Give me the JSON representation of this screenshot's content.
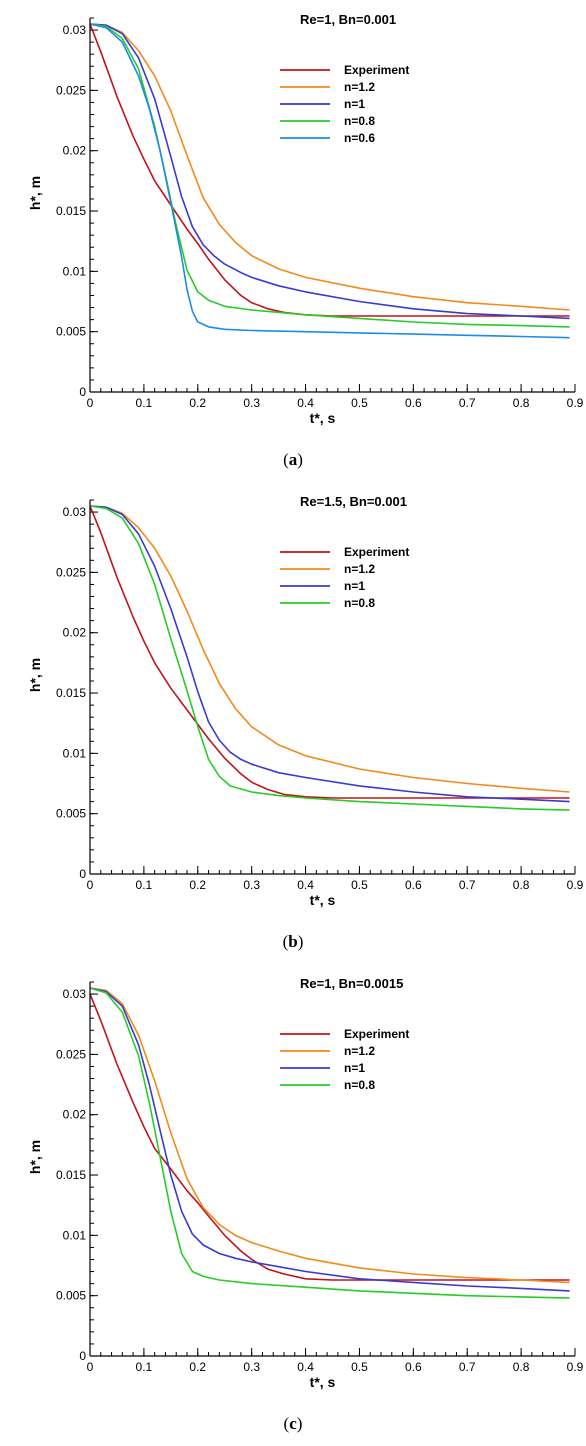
{
  "chart_data": [
    {
      "type": "line",
      "title": "Re=1, Bn=0.001",
      "caption": "a",
      "xlabel": "t*, s",
      "ylabel": "h*, m",
      "xlim": [
        0,
        0.9
      ],
      "ylim": [
        0,
        0.031
      ],
      "x_ticks": [
        "0",
        "0.1",
        "0.2",
        "0.3",
        "0.4",
        "0.5",
        "0.6",
        "0.7",
        "0.8",
        "0.9"
      ],
      "y_ticks": [
        "0",
        "0.005",
        "0.01",
        "0.015",
        "0.02",
        "0.025",
        "0.03"
      ],
      "grid": false,
      "legend_position": "top-right",
      "series": [
        {
          "name": "Experiment",
          "color": "#c0141c",
          "x": [
            0,
            0.02,
            0.05,
            0.08,
            0.1,
            0.12,
            0.15,
            0.18,
            0.2,
            0.22,
            0.25,
            0.28,
            0.3,
            0.33,
            0.36,
            0.4,
            0.45,
            0.5,
            0.6,
            0.7,
            0.8,
            0.89
          ],
          "y": [
            0.0305,
            0.0282,
            0.0245,
            0.0212,
            0.0193,
            0.0175,
            0.0155,
            0.0135,
            0.0123,
            0.011,
            0.0093,
            0.008,
            0.0074,
            0.0069,
            0.0066,
            0.0064,
            0.0063,
            0.0063,
            0.0063,
            0.0063,
            0.0063,
            0.0063
          ]
        },
        {
          "name": "n=1.2",
          "color": "#f28a1c",
          "x": [
            0,
            0.03,
            0.06,
            0.09,
            0.12,
            0.15,
            0.18,
            0.21,
            0.24,
            0.27,
            0.3,
            0.35,
            0.4,
            0.5,
            0.6,
            0.7,
            0.8,
            0.89
          ],
          "y": [
            0.0305,
            0.0304,
            0.0298,
            0.0283,
            0.0262,
            0.0233,
            0.0196,
            0.0161,
            0.0139,
            0.0124,
            0.0113,
            0.0102,
            0.0095,
            0.0086,
            0.0079,
            0.0074,
            0.0071,
            0.0068
          ]
        },
        {
          "name": "n=1",
          "color": "#3a3ad0",
          "x": [
            0,
            0.03,
            0.06,
            0.09,
            0.12,
            0.15,
            0.17,
            0.19,
            0.21,
            0.23,
            0.25,
            0.28,
            0.3,
            0.35,
            0.4,
            0.5,
            0.6,
            0.7,
            0.8,
            0.89
          ],
          "y": [
            0.0305,
            0.0304,
            0.0297,
            0.0277,
            0.0243,
            0.0195,
            0.0162,
            0.0137,
            0.0122,
            0.0113,
            0.0106,
            0.0099,
            0.0095,
            0.0088,
            0.0083,
            0.0075,
            0.0069,
            0.0065,
            0.0063,
            0.0061
          ]
        },
        {
          "name": "n=0.8",
          "color": "#28cc28",
          "x": [
            0,
            0.03,
            0.06,
            0.09,
            0.12,
            0.14,
            0.16,
            0.18,
            0.2,
            0.22,
            0.25,
            0.3,
            0.4,
            0.5,
            0.6,
            0.7,
            0.8,
            0.89
          ],
          "y": [
            0.0305,
            0.0303,
            0.0293,
            0.0268,
            0.022,
            0.018,
            0.0138,
            0.0101,
            0.0083,
            0.0076,
            0.0071,
            0.0068,
            0.0064,
            0.0061,
            0.0058,
            0.0056,
            0.0055,
            0.0054
          ]
        },
        {
          "name": "n=0.6",
          "color": "#1c8ce6",
          "x": [
            0,
            0.03,
            0.06,
            0.09,
            0.11,
            0.13,
            0.15,
            0.17,
            0.18,
            0.19,
            0.2,
            0.22,
            0.25,
            0.3,
            0.4,
            0.5,
            0.6,
            0.7,
            0.8,
            0.89
          ],
          "y": [
            0.0305,
            0.0302,
            0.029,
            0.0262,
            0.0235,
            0.02,
            0.0157,
            0.0112,
            0.0085,
            0.0067,
            0.0058,
            0.0054,
            0.0052,
            0.0051,
            0.005,
            0.0049,
            0.0048,
            0.0047,
            0.0046,
            0.0045
          ]
        }
      ]
    },
    {
      "type": "line",
      "title": "Re=1.5, Bn=0.001",
      "caption": "b",
      "xlabel": "t*, s",
      "ylabel": "h*, m",
      "xlim": [
        0,
        0.9
      ],
      "ylim": [
        0,
        0.031
      ],
      "x_ticks": [
        "0",
        "0.1",
        "0.2",
        "0.3",
        "0.4",
        "0.5",
        "0.6",
        "0.7",
        "0.8",
        "0.9"
      ],
      "y_ticks": [
        "0",
        "0.005",
        "0.01",
        "0.015",
        "0.02",
        "0.025",
        "0.03"
      ],
      "grid": false,
      "legend_position": "top-right",
      "series": [
        {
          "name": "Experiment",
          "color": "#c0141c",
          "x": [
            0,
            0.02,
            0.05,
            0.08,
            0.1,
            0.12,
            0.15,
            0.18,
            0.2,
            0.22,
            0.25,
            0.28,
            0.3,
            0.33,
            0.36,
            0.4,
            0.45,
            0.5,
            0.6,
            0.7,
            0.8,
            0.89
          ],
          "y": [
            0.0305,
            0.0283,
            0.0246,
            0.0213,
            0.0193,
            0.0175,
            0.0154,
            0.0136,
            0.0124,
            0.0112,
            0.0096,
            0.0083,
            0.0076,
            0.007,
            0.0066,
            0.0064,
            0.0063,
            0.0063,
            0.0063,
            0.0063,
            0.0063,
            0.0063
          ]
        },
        {
          "name": "n=1.2",
          "color": "#f28a1c",
          "x": [
            0,
            0.03,
            0.06,
            0.09,
            0.12,
            0.15,
            0.18,
            0.21,
            0.24,
            0.27,
            0.3,
            0.35,
            0.4,
            0.5,
            0.6,
            0.7,
            0.8,
            0.89
          ],
          "y": [
            0.0305,
            0.0304,
            0.0299,
            0.0287,
            0.027,
            0.0247,
            0.0218,
            0.0186,
            0.0158,
            0.0137,
            0.0122,
            0.0107,
            0.0098,
            0.0087,
            0.008,
            0.0075,
            0.0071,
            0.0068
          ]
        },
        {
          "name": "n=1",
          "color": "#3a3ad0",
          "x": [
            0,
            0.03,
            0.06,
            0.09,
            0.12,
            0.15,
            0.18,
            0.2,
            0.22,
            0.24,
            0.26,
            0.28,
            0.3,
            0.35,
            0.4,
            0.5,
            0.6,
            0.7,
            0.8,
            0.89
          ],
          "y": [
            0.0305,
            0.0304,
            0.0298,
            0.0282,
            0.0255,
            0.022,
            0.018,
            0.0151,
            0.0126,
            0.0111,
            0.0101,
            0.0095,
            0.0091,
            0.0084,
            0.008,
            0.0073,
            0.0068,
            0.0064,
            0.0062,
            0.006
          ]
        },
        {
          "name": "n=0.8",
          "color": "#28cc28",
          "x": [
            0,
            0.03,
            0.06,
            0.09,
            0.12,
            0.15,
            0.18,
            0.2,
            0.22,
            0.24,
            0.26,
            0.3,
            0.35,
            0.4,
            0.5,
            0.6,
            0.7,
            0.8,
            0.89
          ],
          "y": [
            0.0305,
            0.0303,
            0.0295,
            0.0274,
            0.024,
            0.0195,
            0.0152,
            0.0122,
            0.0095,
            0.0081,
            0.0073,
            0.0068,
            0.0065,
            0.0063,
            0.006,
            0.0058,
            0.0056,
            0.0054,
            0.0053
          ]
        }
      ]
    },
    {
      "type": "line",
      "title": "Re=1, Bn=0.0015",
      "caption": "c",
      "xlabel": "t*, s",
      "ylabel": "h*, m",
      "xlim": [
        0,
        0.9
      ],
      "ylim": [
        0,
        0.031
      ],
      "x_ticks": [
        "0",
        "0.1",
        "0.2",
        "0.3",
        "0.4",
        "0.5",
        "0.6",
        "0.7",
        "0.8",
        "0.9"
      ],
      "y_ticks": [
        "0",
        "0.005",
        "0.01",
        "0.015",
        "0.02",
        "0.025",
        "0.03"
      ],
      "grid": false,
      "legend_position": "top-right",
      "series": [
        {
          "name": "Experiment",
          "color": "#c0141c",
          "x": [
            0,
            0.02,
            0.05,
            0.08,
            0.1,
            0.12,
            0.15,
            0.18,
            0.2,
            0.22,
            0.25,
            0.28,
            0.3,
            0.33,
            0.36,
            0.4,
            0.45,
            0.5,
            0.6,
            0.7,
            0.8,
            0.89
          ],
          "y": [
            0.03,
            0.0278,
            0.0242,
            0.021,
            0.019,
            0.0172,
            0.0155,
            0.0137,
            0.0127,
            0.0116,
            0.01,
            0.0087,
            0.008,
            0.0072,
            0.0068,
            0.0064,
            0.0063,
            0.0063,
            0.0063,
            0.0063,
            0.0063,
            0.0063
          ]
        },
        {
          "name": "n=1.2",
          "color": "#f28a1c",
          "x": [
            0,
            0.03,
            0.06,
            0.09,
            0.12,
            0.15,
            0.18,
            0.21,
            0.24,
            0.27,
            0.3,
            0.35,
            0.4,
            0.5,
            0.6,
            0.7,
            0.8,
            0.89
          ],
          "y": [
            0.0305,
            0.0303,
            0.0292,
            0.0266,
            0.0228,
            0.0185,
            0.0147,
            0.0123,
            0.0109,
            0.01,
            0.0094,
            0.0087,
            0.0081,
            0.0073,
            0.0068,
            0.0065,
            0.0063,
            0.0061
          ]
        },
        {
          "name": "n=1",
          "color": "#3a3ad0",
          "x": [
            0,
            0.03,
            0.06,
            0.09,
            0.11,
            0.13,
            0.15,
            0.17,
            0.19,
            0.21,
            0.24,
            0.27,
            0.3,
            0.35,
            0.4,
            0.5,
            0.6,
            0.7,
            0.8,
            0.89
          ],
          "y": [
            0.0305,
            0.0302,
            0.029,
            0.0258,
            0.0225,
            0.0187,
            0.015,
            0.012,
            0.0101,
            0.0092,
            0.0085,
            0.0081,
            0.0078,
            0.0074,
            0.007,
            0.0064,
            0.0061,
            0.0058,
            0.0056,
            0.0054
          ]
        },
        {
          "name": "n=0.8",
          "color": "#28cc28",
          "x": [
            0,
            0.03,
            0.06,
            0.09,
            0.11,
            0.13,
            0.15,
            0.17,
            0.19,
            0.21,
            0.24,
            0.3,
            0.4,
            0.5,
            0.6,
            0.7,
            0.8,
            0.89
          ],
          "y": [
            0.0305,
            0.0301,
            0.0285,
            0.0249,
            0.021,
            0.0165,
            0.012,
            0.0085,
            0.007,
            0.0066,
            0.0063,
            0.006,
            0.0057,
            0.0054,
            0.0052,
            0.005,
            0.0049,
            0.0048
          ]
        }
      ]
    }
  ]
}
